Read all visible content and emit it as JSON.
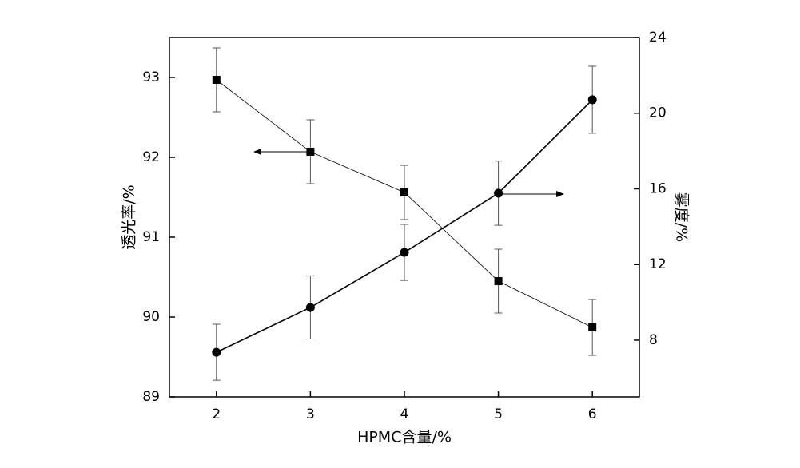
{
  "chart_data": {
    "type": "line",
    "x_label": "HPMC含量/%",
    "y_label": "透光率/%",
    "y2_label": "雾度/%",
    "x": [
      2,
      3,
      4,
      5,
      6
    ],
    "xlim": [
      1.5,
      6.5
    ],
    "xticks": [
      2,
      3,
      4,
      5,
      6
    ],
    "ylim": [
      89,
      93.5
    ],
    "yticks": [
      89,
      90,
      91,
      92,
      93
    ],
    "y2lim": [
      5,
      24
    ],
    "y2ticks": [
      8,
      12,
      16,
      20,
      24
    ],
    "series": [
      {
        "color": "#000000",
        "marker": "square",
        "values": [
          92.97,
          92.07,
          91.56,
          90.45,
          89.87
        ],
        "errors": [
          0.4,
          0.4,
          0.34,
          0.4,
          0.35
        ]
      },
      {
        "color": "#000000",
        "marker": "circle",
        "axis": "y2",
        "values": [
          7.36,
          9.73,
          12.64,
          15.77,
          20.71
        ],
        "errors": [
          1.48,
          1.67,
          1.48,
          1.7,
          1.77
        ]
      }
    ]
  }
}
